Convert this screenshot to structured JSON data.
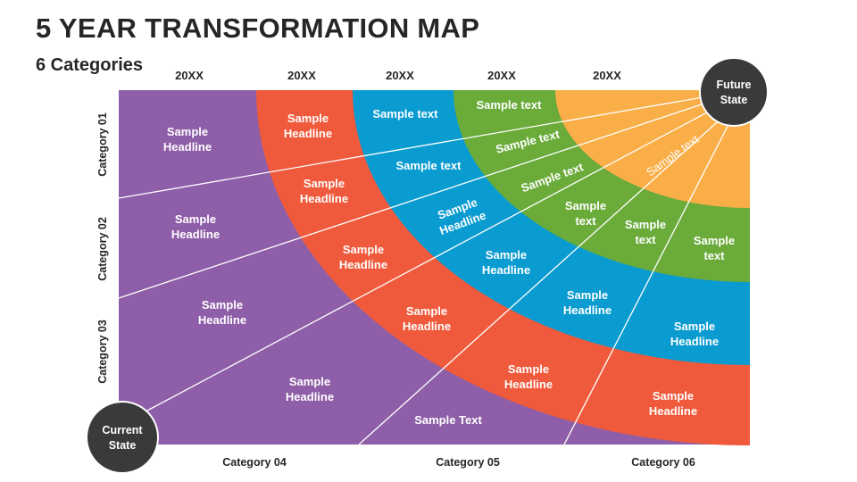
{
  "title": "5 YEAR TRANSFORMATION MAP",
  "subtitle": "6 Categories",
  "years": [
    "20XX",
    "20XX",
    "20XX",
    "20XX",
    "20XX"
  ],
  "y_categories": [
    "Category 01",
    "Category 02",
    "Category 03"
  ],
  "x_categories": [
    "Category 04",
    "Category 05",
    "Category 06"
  ],
  "future_state": [
    "Future",
    "State"
  ],
  "current_state": [
    "Current",
    "State"
  ],
  "colors": {
    "purple": "#8E5EA8",
    "red": "#F05A3C",
    "blue": "#0A9BD0",
    "green": "#6AAB3A",
    "orange": "#FAAE47",
    "circle": "#3A3A3A"
  },
  "purple_labels": [
    [
      "Sample",
      "Headline"
    ],
    [
      "Sample",
      "Headline"
    ],
    [
      "Sample",
      "Headline"
    ],
    [
      "Sample",
      "Headline"
    ],
    [
      "Sample Text"
    ]
  ],
  "red_labels": [
    [
      "Sample",
      "Headline"
    ],
    [
      "Sample",
      "Headline"
    ],
    [
      "Sample",
      "Headline"
    ],
    [
      "Sample",
      "Headline"
    ],
    [
      "Sample",
      "Headline"
    ],
    [
      "Sample",
      "Headline"
    ]
  ],
  "blue_labels": [
    [
      "Sample text"
    ],
    [
      "Sample text"
    ],
    [
      "Sample",
      "Headline"
    ],
    [
      "Sample",
      "Headline"
    ],
    [
      "Sample",
      "Headline"
    ],
    [
      "Sample",
      "Headline"
    ]
  ],
  "green_labels": [
    [
      "Sample text"
    ],
    [
      "Sample text"
    ],
    [
      "Sample text"
    ],
    [
      "Sample",
      "text"
    ],
    [
      "Sample",
      "text"
    ],
    [
      "Sample",
      "text"
    ]
  ],
  "orange_labels": [
    [
      "Sample text"
    ]
  ]
}
